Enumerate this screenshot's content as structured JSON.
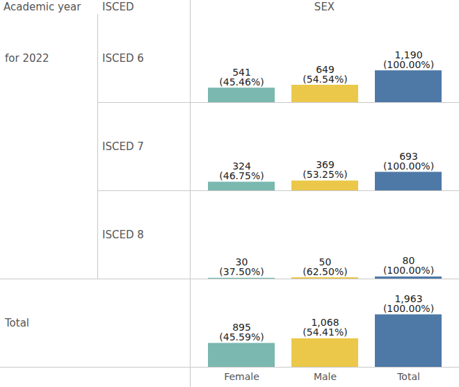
{
  "chart_data": {
    "type": "bar",
    "column_headers": [
      "Academic year",
      "ISCED",
      "SEX"
    ],
    "categories": [
      "Female",
      "Male",
      "Total"
    ],
    "colors": [
      "#7ab8b0",
      "#ebc84a",
      "#4e79a7"
    ],
    "ylim": [
      0,
      3300
    ],
    "tick_labels": "x",
    "data_labels": true,
    "row_groups": [
      {
        "label": "for 2022",
        "rows": [
          {
            "label": "ISCED 6",
            "values": [
              541,
              649,
              1190
            ],
            "value_labels": [
              "541",
              "649",
              "1,190"
            ],
            "share_labels": [
              "(45.46%)",
              "(54.54%)",
              "(100.00%)"
            ]
          },
          {
            "label": "ISCED 7",
            "values": [
              324,
              369,
              693
            ],
            "value_labels": [
              "324",
              "369",
              "693"
            ],
            "share_labels": [
              "(46.75%)",
              "(53.25%)",
              "(100.00%)"
            ]
          },
          {
            "label": "ISCED 8",
            "values": [
              30,
              50,
              80
            ],
            "value_labels": [
              "30",
              "50",
              "80"
            ],
            "share_labels": [
              "(37.50%)",
              "(62.50%)",
              "(100.00%)"
            ]
          }
        ]
      },
      {
        "label": "Total",
        "rows": [
          {
            "label": null,
            "values": [
              895,
              1068,
              1963
            ],
            "value_labels": [
              "895",
              "1,068",
              "1,963"
            ],
            "share_labels": [
              "(45.59%)",
              "(54.41%)",
              "(100.00%)"
            ]
          }
        ]
      }
    ]
  }
}
